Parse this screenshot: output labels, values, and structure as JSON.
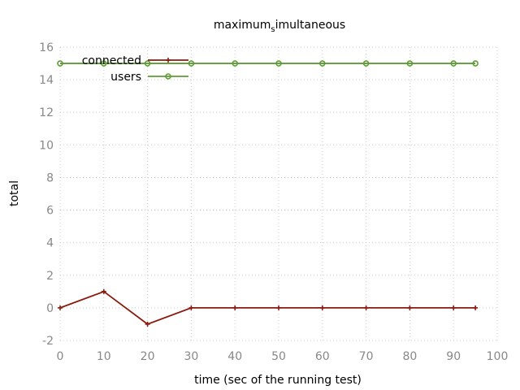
{
  "chart_data": {
    "type": "line",
    "title_main": "maximum",
    "title_sub": "s",
    "title_rest": "imultaneous",
    "xlabel": "time (sec of the running test)",
    "ylabel": "total",
    "xlim": [
      0,
      100
    ],
    "ylim": [
      -2,
      16
    ],
    "xticks": [
      0,
      10,
      20,
      30,
      40,
      50,
      60,
      70,
      80,
      90,
      100
    ],
    "yticks": [
      -2,
      0,
      2,
      4,
      6,
      8,
      10,
      12,
      14,
      16
    ],
    "grid": true,
    "legend_position": "top-left",
    "series": [
      {
        "name": "connected",
        "color": "#8b1a0e",
        "marker": "plus",
        "x": [
          0,
          10,
          20,
          30,
          40,
          50,
          60,
          70,
          80,
          90,
          95
        ],
        "y": [
          0,
          1,
          -1,
          0,
          0,
          0,
          0,
          0,
          0,
          0,
          0
        ]
      },
      {
        "name": "users",
        "color": "#5e9c36",
        "marker": "circle",
        "x": [
          0,
          10,
          20,
          30,
          40,
          50,
          60,
          70,
          80,
          90,
          95
        ],
        "y": [
          15,
          15,
          15,
          15,
          15,
          15,
          15,
          15,
          15,
          15,
          15
        ]
      }
    ]
  }
}
